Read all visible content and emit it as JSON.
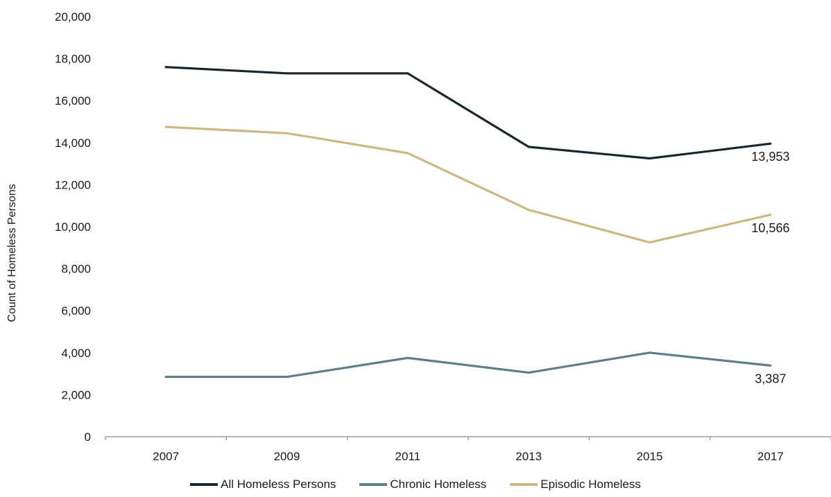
{
  "chart_data": {
    "type": "line",
    "title": "",
    "xlabel": "",
    "ylabel": "Count of Homeless Persons",
    "x": [
      "2007",
      "2009",
      "2011",
      "2013",
      "2015",
      "2017"
    ],
    "ylim": [
      0,
      20000
    ],
    "yticks": [
      0,
      2000,
      4000,
      6000,
      8000,
      10000,
      12000,
      14000,
      16000,
      18000,
      20000
    ],
    "ytick_labels": [
      "0",
      "2,000",
      "4,000",
      "6,000",
      "8,000",
      "10,000",
      "12,000",
      "14,000",
      "16,000",
      "18,000",
      "20,000"
    ],
    "grid": false,
    "legend_position": "bottom",
    "series": [
      {
        "name": "All Homeless Persons",
        "color": "#17272d",
        "values": [
          17600,
          17300,
          17300,
          13800,
          13250,
          13953
        ],
        "end_label": "13,953"
      },
      {
        "name": "Chronic Homeless",
        "color": "#5f7e8c",
        "values": [
          2850,
          2850,
          3750,
          3050,
          4000,
          3387
        ],
        "end_label": "3,387"
      },
      {
        "name": "Episodic Homeless",
        "color": "#cdb783",
        "values": [
          14750,
          14450,
          13500,
          10800,
          9250,
          10566
        ],
        "end_label": "10,566"
      }
    ]
  }
}
